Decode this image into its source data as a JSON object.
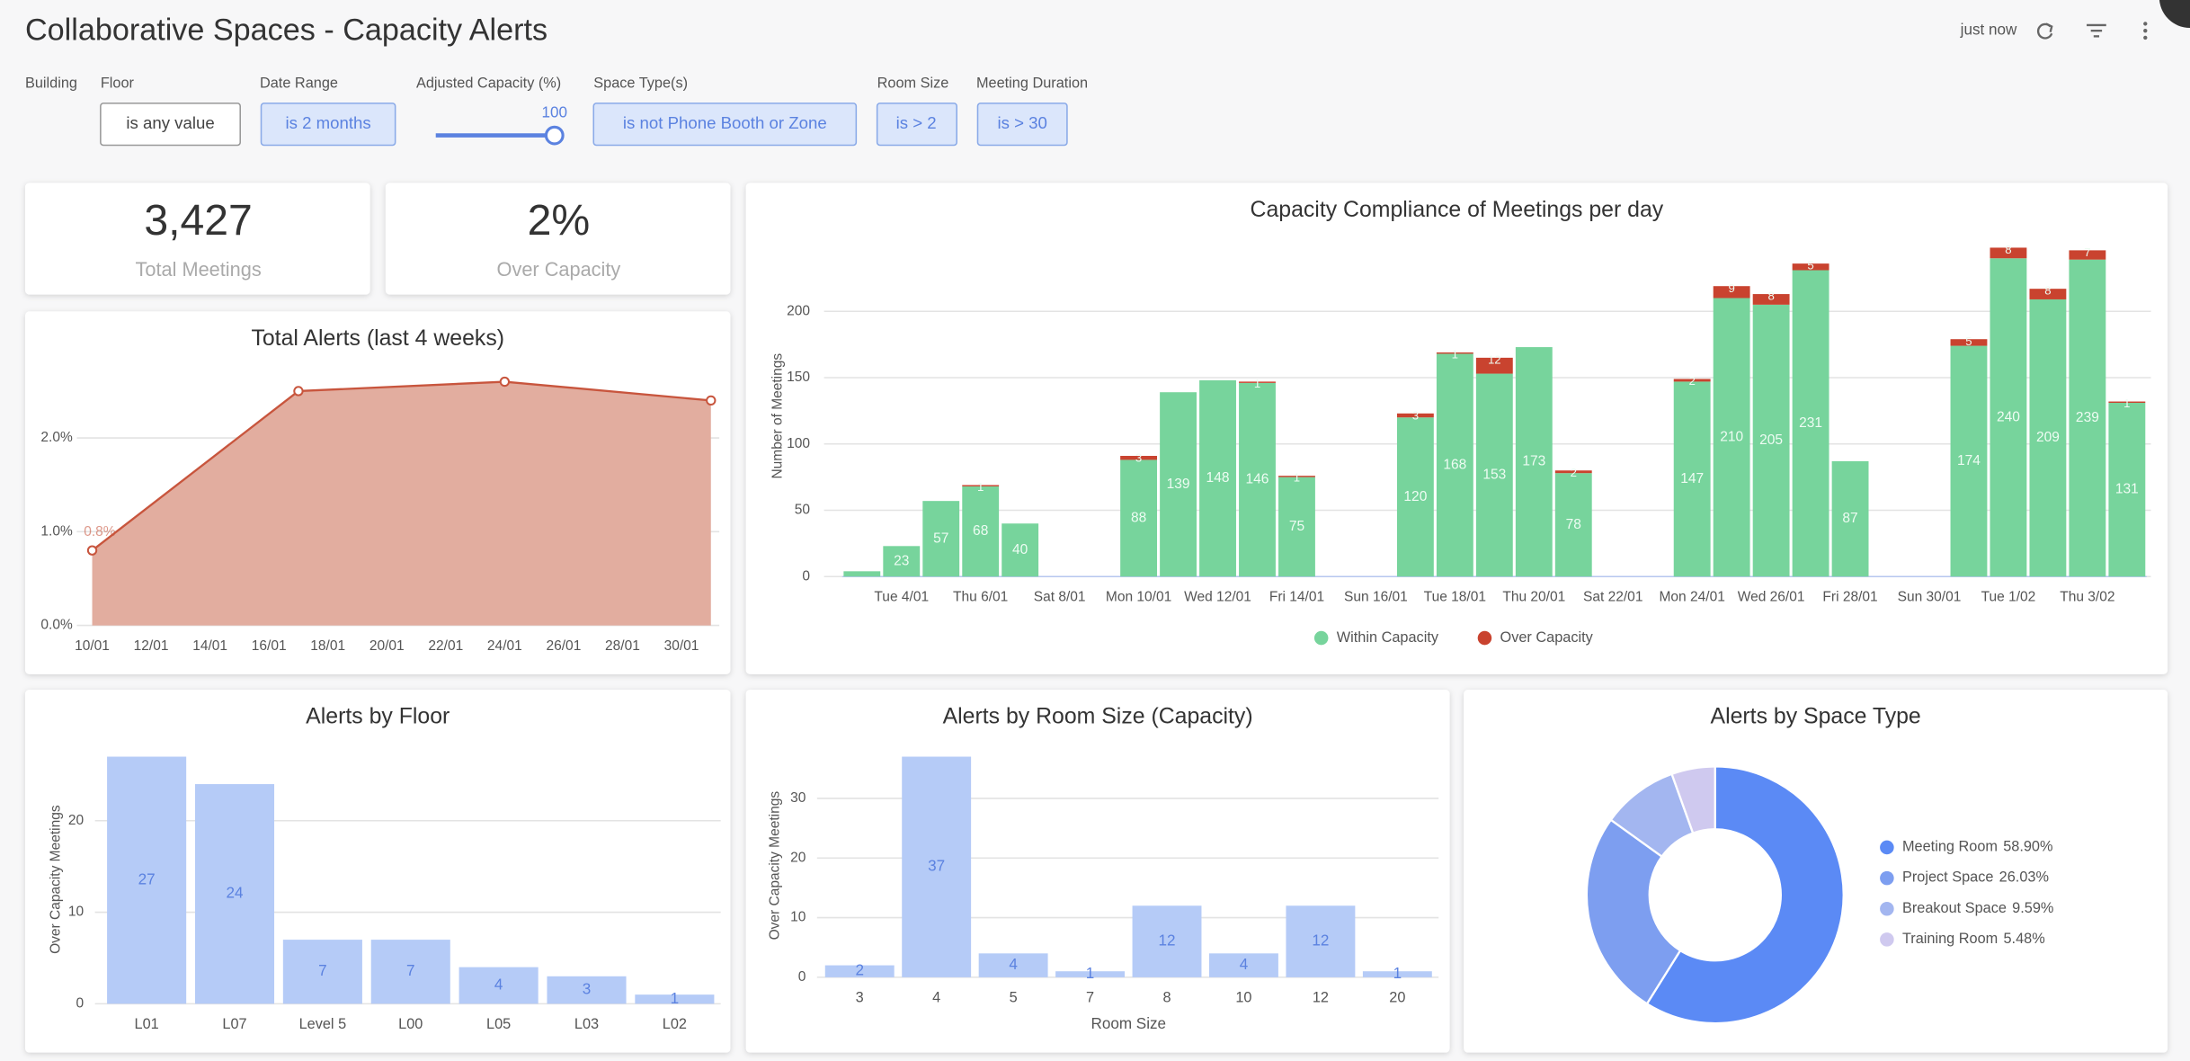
{
  "header": {
    "title": "Collaborative Spaces - Capacity Alerts",
    "refreshed": "just now"
  },
  "filters": [
    {
      "label": "Building"
    },
    {
      "label": "Floor",
      "value": "is any value"
    },
    {
      "label": "Date Range",
      "value": "is 2 months"
    },
    {
      "label": "Adjusted Capacity (%)",
      "value": 100
    },
    {
      "label": "Space Type(s)",
      "value": "is not Phone Booth or Zone"
    },
    {
      "label": "Room Size",
      "value": "is > 2"
    },
    {
      "label": "Meeting Duration",
      "value": "is > 30"
    }
  ],
  "kpis": [
    {
      "value": "3,427",
      "label": "Total Meetings"
    },
    {
      "value": "2%",
      "label": "Over Capacity"
    }
  ],
  "chart_data": [
    {
      "type": "area",
      "title": "Total Alerts (last 4 weeks)",
      "x": [
        10,
        17,
        24,
        31
      ],
      "values": [
        0.8,
        2.5,
        2.6,
        2.4
      ],
      "value_labels": [
        "0.8%",
        null,
        null,
        null
      ],
      "color": "#c8553d",
      "fill": "#e2ad9f",
      "xlim": [
        10,
        31
      ],
      "xticks": [
        {
          "value": 10,
          "label": "10/01"
        },
        {
          "value": 12,
          "label": "12/01"
        },
        {
          "value": 14,
          "label": "14/01"
        },
        {
          "value": 16,
          "label": "16/01"
        },
        {
          "value": 18,
          "label": "18/01"
        },
        {
          "value": 20,
          "label": "20/01"
        },
        {
          "value": 22,
          "label": "22/01"
        },
        {
          "value": 24,
          "label": "24/01"
        },
        {
          "value": 26,
          "label": "26/01"
        },
        {
          "value": 28,
          "label": "28/01"
        },
        {
          "value": 30,
          "label": "30/01"
        }
      ],
      "ylim": [
        0,
        2.8
      ],
      "yticks": [
        {
          "value": 0,
          "label": "0.0%"
        },
        {
          "value": 1,
          "label": "1.0%"
        },
        {
          "value": 2,
          "label": "2.0%"
        }
      ],
      "grid": true
    },
    {
      "type": "stacked_bar",
      "title": "Capacity Compliance of Meetings per day",
      "y_label": "Number of Meetings",
      "categories": [
        null,
        "Tue 4/01",
        null,
        "Thu 6/01",
        null,
        "Sat 8/01",
        null,
        "Mon 10/01",
        null,
        "Wed 12/01",
        null,
        "Fri 14/01",
        null,
        "Sun 16/01",
        null,
        "Tue 18/01",
        null,
        "Thu 20/01",
        null,
        "Sat 22/01",
        null,
        "Mon 24/01",
        null,
        "Wed 26/01",
        null,
        "Fri 28/01",
        null,
        "Sun 30/01",
        null,
        "Tue 1/02",
        null,
        "Thu 3/02",
        null
      ],
      "series": [
        {
          "name": "Within Capacity",
          "color": "#77d49c",
          "values": [
            4,
            23,
            57,
            68,
            40,
            null,
            null,
            88,
            139,
            148,
            146,
            75,
            null,
            null,
            120,
            168,
            153,
            173,
            78,
            null,
            null,
            147,
            210,
            205,
            231,
            87,
            null,
            null,
            174,
            240,
            209,
            239,
            131
          ]
        },
        {
          "name": "Over Capacity",
          "color": "#c9432f",
          "values": [
            null,
            null,
            null,
            1,
            null,
            null,
            null,
            3,
            null,
            null,
            1,
            1,
            null,
            null,
            3,
            1,
            12,
            null,
            2,
            null,
            null,
            2,
            9,
            8,
            5,
            null,
            null,
            null,
            5,
            8,
            8,
            7,
            1
          ]
        }
      ],
      "ylim": [
        0,
        250
      ],
      "yticks": [
        0,
        50,
        100,
        150,
        200
      ],
      "grid": true,
      "legend": "bottom"
    },
    {
      "type": "bar",
      "title": "Alerts by Floor",
      "y_label": "Over Capacity Meetings",
      "categories": [
        "L01",
        "L07",
        "Level 5",
        "L00",
        "L05",
        "L03",
        "L02"
      ],
      "values": [
        27,
        24,
        7,
        7,
        4,
        3,
        1
      ],
      "color": "#b5cbf7",
      "ylim": [
        0,
        27
      ],
      "yticks": [
        0,
        10,
        20
      ],
      "grid": true
    },
    {
      "type": "bar",
      "title": "Alerts by Room Size (Capacity)",
      "y_label": "Over Capacity Meetings",
      "x_label": "Room Size",
      "categories": [
        "3",
        "4",
        "5",
        "7",
        "8",
        "10",
        "12",
        "20"
      ],
      "values": [
        2,
        37,
        4,
        1,
        12,
        4,
        12,
        1
      ],
      "color": "#b5cbf7",
      "ylim": [
        0,
        37
      ],
      "yticks": [
        0,
        10,
        20,
        30
      ],
      "grid": true
    },
    {
      "type": "donut",
      "title": "Alerts by Space Type",
      "categories": [
        "Meeting Room",
        "Project Space",
        "Breakout Space",
        "Training Room"
      ],
      "values": [
        58.9,
        26.03,
        9.59,
        5.48
      ],
      "value_labels": [
        "58.90%",
        "26.03%",
        "9.59%",
        "5.48%"
      ],
      "colors": [
        "#5b8af5",
        "#7d9ef0",
        "#a3b6f0",
        "#cfc9ef"
      ],
      "legend": "right"
    }
  ]
}
